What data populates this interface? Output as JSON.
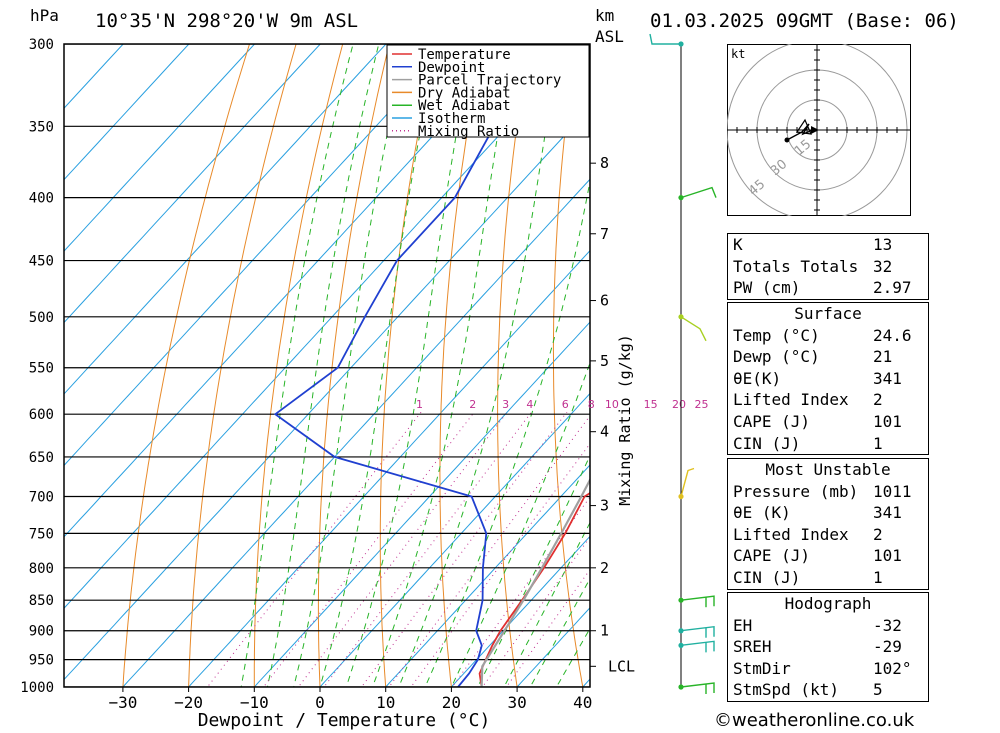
{
  "header": {
    "hpa_unit": "hPa",
    "location": "10°35'N 298°20'W 9m ASL",
    "km_unit": "km",
    "asl": "ASL",
    "datetime": "01.03.2025 09GMT (Base: 06)"
  },
  "footer": {
    "credit": "©weatheronline.co.uk"
  },
  "chart_data": {
    "type": "line",
    "subtype": "skew-T log-P diagram",
    "xlabel": "Dewpoint / Temperature (°C)",
    "ylabel": "hPa",
    "right_axis_label": "Mixing Ratio (g/kg)",
    "y_scale": "log",
    "xlim": [
      -40,
      40
    ],
    "ylim": [
      1000,
      300
    ],
    "pressure_ticks": [
      300,
      350,
      400,
      450,
      500,
      550,
      600,
      650,
      700,
      750,
      800,
      850,
      900,
      950,
      1000
    ],
    "temperature_ticks": [
      -30,
      -20,
      -10,
      0,
      10,
      20,
      30,
      40
    ],
    "km_ticks": [
      {
        "label": "8",
        "p": 375
      },
      {
        "label": "7",
        "p": 428
      },
      {
        "label": "6",
        "p": 485
      },
      {
        "label": "5",
        "p": 543
      },
      {
        "label": "4",
        "p": 620
      },
      {
        "label": "3",
        "p": 712
      },
      {
        "label": "2",
        "p": 800
      },
      {
        "label": "1",
        "p": 900
      },
      {
        "label": "LCL",
        "p": 962
      }
    ],
    "mixing_ratio_labels": [
      "1",
      "2",
      "3",
      "4",
      "6",
      "8",
      "10",
      "15",
      "20",
      "25"
    ],
    "legend": {
      "placement": "top-right",
      "entries": [
        {
          "name": "Temperature",
          "color": "#e03030",
          "style": "solid"
        },
        {
          "name": "Dewpoint",
          "color": "#2040d0",
          "style": "solid"
        },
        {
          "name": "Parcel Trajectory",
          "color": "#a0a0a0",
          "style": "solid"
        },
        {
          "name": "Dry Adiabat",
          "color": "#e88a2a",
          "style": "solid"
        },
        {
          "name": "Wet Adiabat",
          "color": "#28b428",
          "style": "solid"
        },
        {
          "name": "Isotherm",
          "color": "#2aa0e0",
          "style": "solid"
        },
        {
          "name": "Mixing Ratio",
          "color": "#c03090",
          "style": "dotted"
        }
      ]
    },
    "series": [
      {
        "name": "Temperature",
        "color": "#e03030",
        "points": [
          [
            1000,
            24.6
          ],
          [
            975,
            22.4
          ],
          [
            950,
            21.4
          ],
          [
            925,
            20.4
          ],
          [
            900,
            19.6
          ],
          [
            850,
            18.6
          ],
          [
            800,
            17.4
          ],
          [
            750,
            15.8
          ],
          [
            700,
            13.6
          ],
          [
            675,
            15.6
          ],
          [
            650,
            16.8
          ],
          [
            600,
            15.4
          ],
          [
            575,
            13.8
          ],
          [
            550,
            11.8
          ],
          [
            500,
            8.4
          ],
          [
            450,
            2.6
          ],
          [
            400,
            -4.8
          ],
          [
            350,
            -13.6
          ],
          [
            300,
            -25
          ]
        ]
      },
      {
        "name": "Dewpoint",
        "color": "#2040d0",
        "points": [
          [
            1000,
            21
          ],
          [
            975,
            20.8
          ],
          [
            950,
            20.2
          ],
          [
            925,
            18.8
          ],
          [
            900,
            15.9
          ],
          [
            850,
            12.6
          ],
          [
            800,
            8.1
          ],
          [
            750,
            3.8
          ],
          [
            700,
            -3.6
          ],
          [
            650,
            -30
          ],
          [
            600,
            -45
          ],
          [
            550,
            -42
          ],
          [
            500,
            -45
          ],
          [
            450,
            -48
          ],
          [
            400,
            -48
          ],
          [
            350,
            -52
          ],
          [
            300,
            -50
          ]
        ]
      },
      {
        "name": "Parcel Trajectory",
        "color": "#a0a0a0",
        "points": [
          [
            1000,
            24.6
          ],
          [
            962,
            21.8
          ],
          [
            900,
            20.2
          ],
          [
            850,
            18.8
          ],
          [
            800,
            17.1
          ],
          [
            750,
            15.2
          ],
          [
            700,
            13.1
          ],
          [
            650,
            10.7
          ],
          [
            600,
            8
          ],
          [
            550,
            4.9
          ],
          [
            500,
            1.2
          ],
          [
            450,
            -3.4
          ],
          [
            400,
            -8.8
          ],
          [
            350,
            -15.8
          ],
          [
            300,
            -24.8
          ]
        ]
      }
    ],
    "wind_barb_levels": [
      {
        "p": 300,
        "color": "#20b0a0"
      },
      {
        "p": 400,
        "color": "#28b428"
      },
      {
        "p": 500,
        "color": "#a8d020"
      },
      {
        "p": 700,
        "color": "#e0c020"
      },
      {
        "p": 850,
        "color": "#28b428"
      },
      {
        "p": 900,
        "color": "#20b0a0"
      },
      {
        "p": 925,
        "color": "#20b0a0"
      },
      {
        "p": 1000,
        "color": "#28b428"
      }
    ],
    "hodograph": {
      "unit": "kt",
      "ring_labels": [
        "15",
        "30",
        "45"
      ],
      "storm_dir_deg": 102,
      "storm_speed_kt": 5
    }
  },
  "indices": {
    "rows": [
      {
        "k": "K",
        "v": "13"
      },
      {
        "k": "Totals Totals",
        "v": "32"
      },
      {
        "k": "PW (cm)",
        "v": "2.97"
      }
    ]
  },
  "surface": {
    "title": "Surface",
    "rows": [
      {
        "k": "Temp (°C)",
        "v": "24.6"
      },
      {
        "k": "Dewp (°C)",
        "v": "21"
      },
      {
        "k": "θE(K)",
        "v": "341"
      },
      {
        "k": "Lifted Index",
        "v": "2"
      },
      {
        "k": "CAPE (J)",
        "v": "101"
      },
      {
        "k": "CIN (J)",
        "v": "1"
      }
    ]
  },
  "most_unstable": {
    "title": "Most Unstable",
    "rows": [
      {
        "k": "Pressure (mb)",
        "v": "1011"
      },
      {
        "k": "θE (K)",
        "v": "341"
      },
      {
        "k": "Lifted Index",
        "v": "2"
      },
      {
        "k": "CAPE (J)",
        "v": "101"
      },
      {
        "k": "CIN (J)",
        "v": "1"
      }
    ]
  },
  "hodograph_table": {
    "title": "Hodograph",
    "rows": [
      {
        "k": "EH",
        "v": "-32"
      },
      {
        "k": "SREH",
        "v": "-29"
      },
      {
        "k": "StmDir",
        "v": "102°"
      },
      {
        "k": "StmSpd (kt)",
        "v": "5"
      }
    ]
  }
}
